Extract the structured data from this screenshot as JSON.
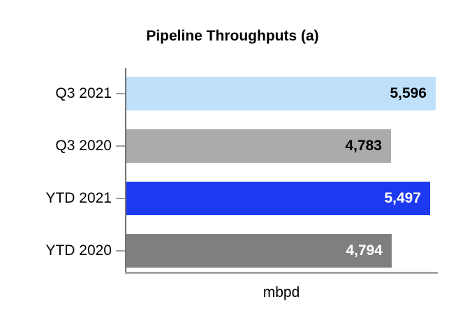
{
  "chart": {
    "title": "Pipeline Throughputs (a)",
    "xlabel": "mbpd"
  },
  "chart_data": {
    "type": "bar",
    "orientation": "horizontal",
    "title": "Pipeline Throughputs (a)",
    "xlabel": "mbpd",
    "ylabel": "",
    "xlim": [
      0,
      5596
    ],
    "grid": false,
    "legend": false,
    "categories": [
      "Q3 2021",
      "Q3 2020",
      "YTD 2021",
      "YTD 2020"
    ],
    "values": [
      5596,
      4783,
      5497,
      4794
    ],
    "bars": [
      {
        "label": "Q3 2021",
        "value": 5596,
        "display": "5,596",
        "color": "#bfe0fa",
        "value_color": "#000000"
      },
      {
        "label": "Q3 2020",
        "value": 4783,
        "display": "4,783",
        "color": "#ababab",
        "value_color": "#000000"
      },
      {
        "label": "YTD 2021",
        "value": 5497,
        "display": "5,497",
        "color": "#1d3af0",
        "value_color": "#ffffff"
      },
      {
        "label": "YTD 2020",
        "value": 4794,
        "display": "4,794",
        "color": "#7f7f7f",
        "value_color": "#ffffff"
      }
    ],
    "axis_colors": {
      "y_axis": "#737373",
      "x_axis": "#b0b0b0",
      "tick": "#9e9e9e"
    }
  }
}
